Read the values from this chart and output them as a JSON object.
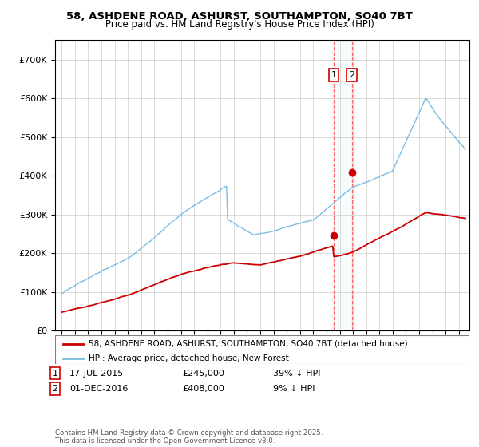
{
  "title_line1": "58, ASHDENE ROAD, ASHURST, SOUTHAMPTON, SO40 7BT",
  "title_line2": "Price paid vs. HM Land Registry's House Price Index (HPI)",
  "ylim": [
    0,
    750000
  ],
  "yticks": [
    0,
    100000,
    200000,
    300000,
    400000,
    500000,
    600000,
    700000
  ],
  "ytick_labels": [
    "£0",
    "£100K",
    "£200K",
    "£300K",
    "£400K",
    "£500K",
    "£600K",
    "£700K"
  ],
  "hpi_color": "#7bbde0",
  "price_color": "#cc0000",
  "vline_color": "#ff6666",
  "sale1_date": 2015.54,
  "sale1_price": 245000,
  "sale2_date": 2016.92,
  "sale2_price": 408000,
  "legend_line1": "58, ASHDENE ROAD, ASHURST, SOUTHAMPTON, SO40 7BT (detached house)",
  "legend_line2": "HPI: Average price, detached house, New Forest",
  "footer": "Contains HM Land Registry data © Crown copyright and database right 2025.\nThis data is licensed under the Open Government Licence v3.0.",
  "xmin": 1994.5,
  "xmax": 2025.8,
  "background_color": "#ffffff",
  "grid_color": "#cccccc"
}
